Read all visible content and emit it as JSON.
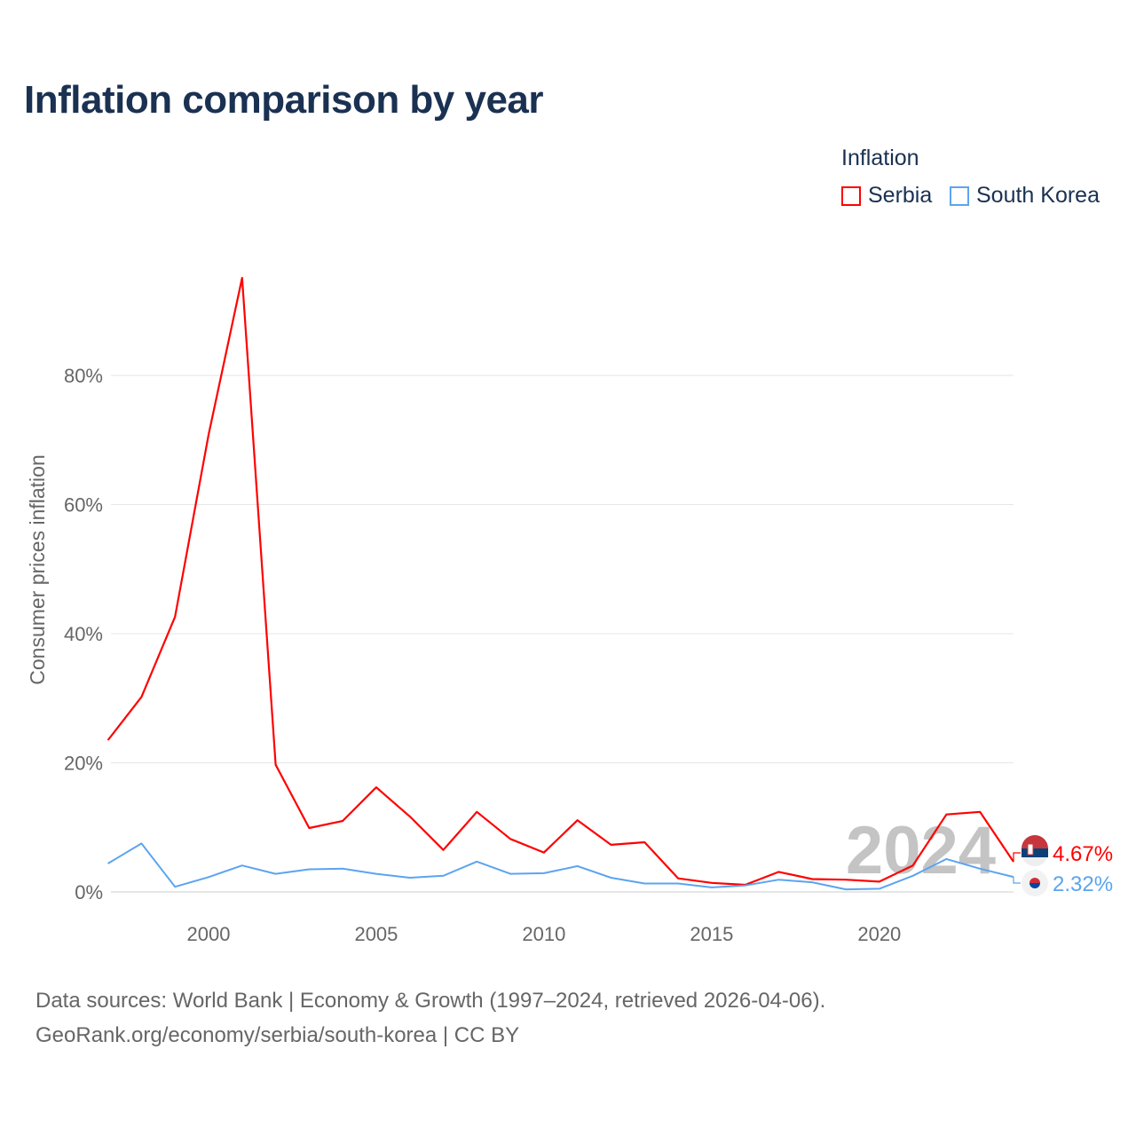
{
  "title": "Inflation comparison by year",
  "legend": {
    "title": "Inflation",
    "items": [
      {
        "label": "Serbia",
        "color": "#ff0000"
      },
      {
        "label": "South Korea",
        "color": "#5ba4f0"
      }
    ]
  },
  "source_lines": [
    "Data sources: World Bank | Economy & Growth (1997–2024, retrieved 2026-04-06).",
    "GeoRank.org/economy/serbia/south-korea | CC BY"
  ],
  "chart_data": {
    "type": "line",
    "title": "Inflation comparison by year",
    "xlabel": "",
    "ylabel": "Consumer prices inflation",
    "x": [
      1997,
      1998,
      1999,
      2000,
      2001,
      2002,
      2003,
      2004,
      2005,
      2006,
      2007,
      2008,
      2009,
      2010,
      2011,
      2012,
      2013,
      2014,
      2015,
      2016,
      2017,
      2018,
      2019,
      2020,
      2021,
      2022,
      2023,
      2024
    ],
    "xlim": [
      1997,
      2024
    ],
    "ylim": [
      0,
      100
    ],
    "xticks": [
      2000,
      2005,
      2010,
      2015,
      2020
    ],
    "yticks": [
      0,
      20,
      40,
      60,
      80
    ],
    "ytick_labels": [
      "0%",
      "20%",
      "40%",
      "60%",
      "80%"
    ],
    "watermark_year": "2024",
    "series": [
      {
        "name": "Serbia",
        "color": "#ff0000",
        "end_label": "4.67%",
        "values": [
          23.5,
          30.2,
          42.6,
          70.8,
          95.1,
          19.7,
          9.9,
          11.0,
          16.2,
          11.7,
          6.5,
          12.4,
          8.2,
          6.1,
          11.1,
          7.3,
          7.7,
          2.1,
          1.4,
          1.1,
          3.1,
          2.0,
          1.9,
          1.6,
          4.1,
          12.0,
          12.4,
          4.67
        ]
      },
      {
        "name": "South Korea",
        "color": "#5ba4f0",
        "end_label": "2.32%",
        "values": [
          4.4,
          7.5,
          0.8,
          2.3,
          4.1,
          2.8,
          3.5,
          3.6,
          2.8,
          2.2,
          2.5,
          4.7,
          2.8,
          2.9,
          4.0,
          2.2,
          1.3,
          1.3,
          0.7,
          1.0,
          1.9,
          1.5,
          0.4,
          0.5,
          2.5,
          5.1,
          3.6,
          2.32
        ]
      }
    ]
  }
}
